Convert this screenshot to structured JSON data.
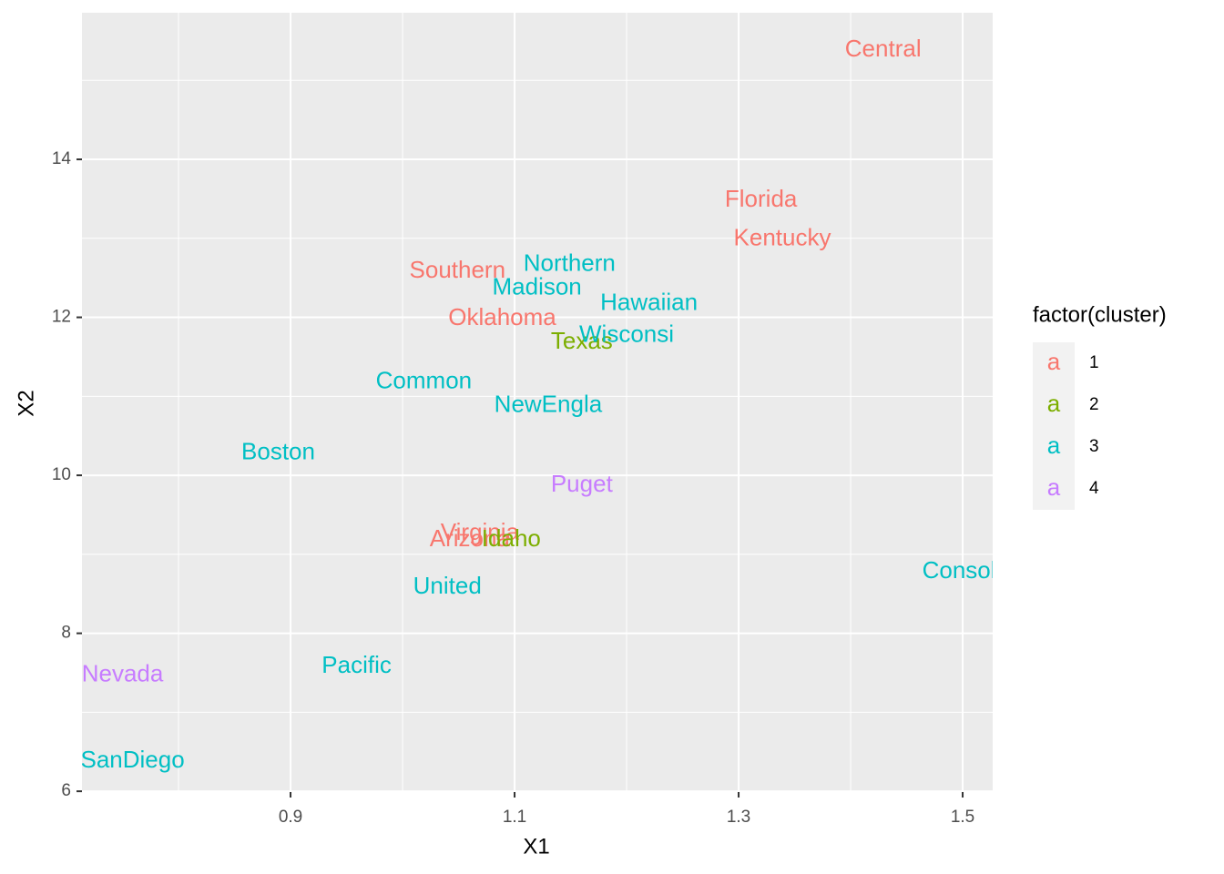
{
  "chart_data": {
    "type": "scatter",
    "x_label": "X1",
    "y_label": "X2",
    "legend_title": "factor(cluster)",
    "legend_key": "a",
    "legend_position": "right",
    "grid": true,
    "xlim": [
      0.7138,
      1.5268
    ],
    "ylim": [
      5.99,
      15.856
    ],
    "xticks": [
      0.9,
      1.1,
      1.3,
      1.5
    ],
    "yticks": [
      6,
      8,
      10,
      12,
      14
    ],
    "series": [
      {
        "name": "1",
        "color": "#F8766D",
        "labels": [
          "Central",
          "Florida",
          "Kentucky",
          "Southern",
          "Oklahoma",
          "Virginia",
          "Arizona"
        ],
        "x": [
          1.429,
          1.32,
          1.339,
          1.049,
          1.089,
          1.069,
          1.06
        ],
        "values": [
          15.38,
          13.48,
          12.99,
          12.58,
          11.98,
          9.26,
          9.18
        ]
      },
      {
        "name": "2",
        "color": "#7CAE00",
        "labels": [
          "Texas",
          "Idaho"
        ],
        "x": [
          1.16,
          1.097
        ],
        "values": [
          11.68,
          9.18
        ]
      },
      {
        "name": "3",
        "color": "#00BFC4",
        "labels": [
          "Northern",
          "Madison",
          "Hawaiian",
          "Wisconsi",
          "Common",
          "NewEngla",
          "Boston",
          "United",
          "Consolid",
          "Pacific",
          "SanDiego"
        ],
        "x": [
          1.149,
          1.12,
          1.22,
          1.2,
          1.019,
          1.13,
          0.889,
          1.04,
          1.505,
          0.959,
          0.759
        ],
        "values": [
          12.67,
          12.37,
          12.17,
          11.77,
          11.18,
          10.88,
          10.28,
          8.58,
          8.78,
          7.58,
          6.38
        ]
      },
      {
        "name": "4",
        "color": "#C77CFF",
        "labels": [
          "Puget",
          "Nevada"
        ],
        "x": [
          1.16,
          0.75
        ],
        "values": [
          9.87,
          7.47
        ]
      }
    ]
  }
}
